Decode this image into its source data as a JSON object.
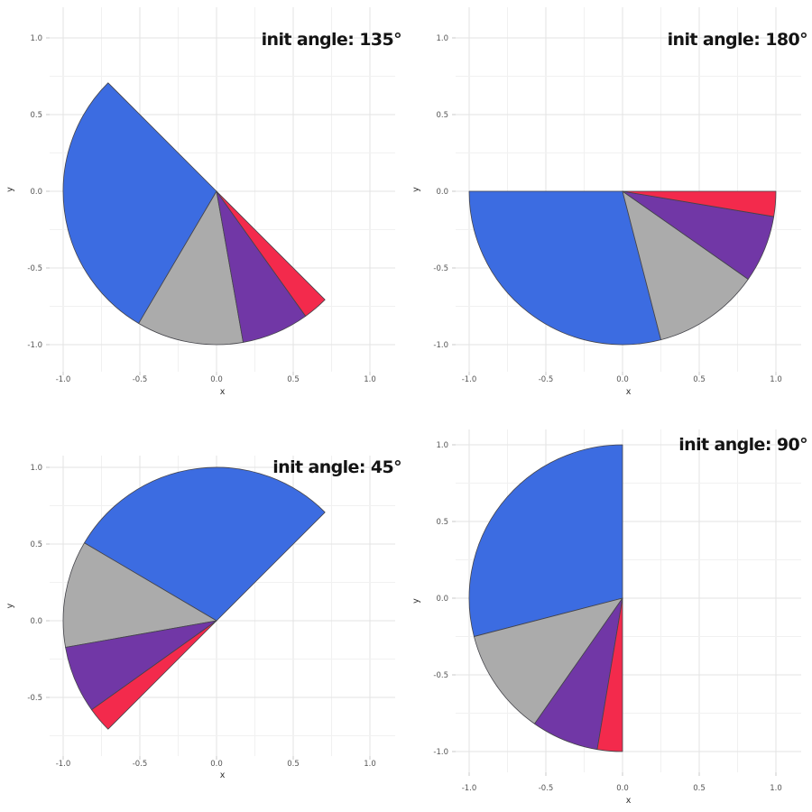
{
  "figure": {
    "background": "#ffffff",
    "grid_major_color": "#e3e3e3",
    "grid_minor_color": "#f1f1f1",
    "axis_tick_color": "#c8c8c8",
    "tick_label_color": "#555555",
    "axis_title_color": "#2e2e2e",
    "title_color": "#141414",
    "slice_outline_color": "#44444a"
  },
  "chart_data": [
    {
      "type": "pie",
      "title": "init angle: 135°",
      "init_angle_deg": 135,
      "sweep_direction": "counterclockwise",
      "total_angle_deg": 180,
      "radius": 1.0,
      "center_xy": [
        0,
        0
      ],
      "xlabel": "x",
      "ylabel": "y",
      "x_ticks": [
        "-1.0",
        "-0.5",
        "0.0",
        "0.5",
        "1.0"
      ],
      "y_ticks": [
        "1.0",
        "0.5",
        "0.0",
        "-0.5",
        "-1.0"
      ],
      "grid": true,
      "legend": false,
      "slices": [
        {
          "name": "slice-blue",
          "fraction": 0.58,
          "angle_deg": 104.5,
          "color": "#3C6CE1"
        },
        {
          "name": "slice-gray",
          "fraction": 0.225,
          "angle_deg": 40.5,
          "color": "#ABABAB"
        },
        {
          "name": "slice-purple",
          "fraction": 0.142,
          "angle_deg": 25.5,
          "color": "#7137A6"
        },
        {
          "name": "slice-red",
          "fraction": 0.053,
          "angle_deg": 9.5,
          "color": "#F32A4C"
        }
      ]
    },
    {
      "type": "pie",
      "title": "init angle: 180°",
      "init_angle_deg": 180,
      "sweep_direction": "counterclockwise",
      "total_angle_deg": 180,
      "radius": 1.0,
      "center_xy": [
        0,
        0
      ],
      "xlabel": "x",
      "ylabel": "y",
      "x_ticks": [
        "-1.0",
        "-0.5",
        "0.0",
        "0.5",
        "1.0"
      ],
      "y_ticks": [
        "1.0",
        "0.5",
        "0.0",
        "-0.5",
        "-1.0"
      ],
      "grid": true,
      "legend": false,
      "slices": [
        {
          "name": "slice-blue",
          "fraction": 0.58,
          "angle_deg": 104.5,
          "color": "#3C6CE1"
        },
        {
          "name": "slice-gray",
          "fraction": 0.225,
          "angle_deg": 40.5,
          "color": "#ABABAB"
        },
        {
          "name": "slice-purple",
          "fraction": 0.142,
          "angle_deg": 25.5,
          "color": "#7137A6"
        },
        {
          "name": "slice-red",
          "fraction": 0.053,
          "angle_deg": 9.5,
          "color": "#F32A4C"
        }
      ]
    },
    {
      "type": "pie",
      "title": "init angle: 45°",
      "init_angle_deg": 45,
      "sweep_direction": "counterclockwise",
      "total_angle_deg": 180,
      "radius": 1.0,
      "center_xy": [
        0,
        0
      ],
      "xlabel": "x",
      "ylabel": "y",
      "x_ticks": [
        "-1.0",
        "-0.5",
        "0.0",
        "0.5",
        "1.0"
      ],
      "y_ticks": [
        "1.0",
        "0.5",
        "0.0",
        "-0.5"
      ],
      "grid": true,
      "legend": false,
      "slices": [
        {
          "name": "slice-blue",
          "fraction": 0.58,
          "angle_deg": 104.5,
          "color": "#3C6CE1"
        },
        {
          "name": "slice-gray",
          "fraction": 0.225,
          "angle_deg": 40.5,
          "color": "#ABABAB"
        },
        {
          "name": "slice-purple",
          "fraction": 0.142,
          "angle_deg": 25.5,
          "color": "#7137A6"
        },
        {
          "name": "slice-red",
          "fraction": 0.053,
          "angle_deg": 9.5,
          "color": "#F32A4C"
        }
      ]
    },
    {
      "type": "pie",
      "title": "init angle: 90°",
      "init_angle_deg": 90,
      "sweep_direction": "counterclockwise",
      "total_angle_deg": 180,
      "radius": 1.0,
      "center_xy": [
        0,
        0
      ],
      "xlabel": "x",
      "ylabel": "y",
      "x_ticks": [
        "-1.0",
        "-0.5",
        "0.0",
        "0.5",
        "1.0"
      ],
      "y_ticks": [
        "1.0",
        "0.5",
        "0.0",
        "-0.5",
        "-1.0"
      ],
      "grid": true,
      "legend": false,
      "slices": [
        {
          "name": "slice-blue",
          "fraction": 0.58,
          "angle_deg": 104.5,
          "color": "#3C6CE1"
        },
        {
          "name": "slice-gray",
          "fraction": 0.225,
          "angle_deg": 40.5,
          "color": "#ABABAB"
        },
        {
          "name": "slice-purple",
          "fraction": 0.142,
          "angle_deg": 25.5,
          "color": "#7137A6"
        },
        {
          "name": "slice-red",
          "fraction": 0.053,
          "angle_deg": 9.5,
          "color": "#F32A4C"
        }
      ]
    }
  ]
}
